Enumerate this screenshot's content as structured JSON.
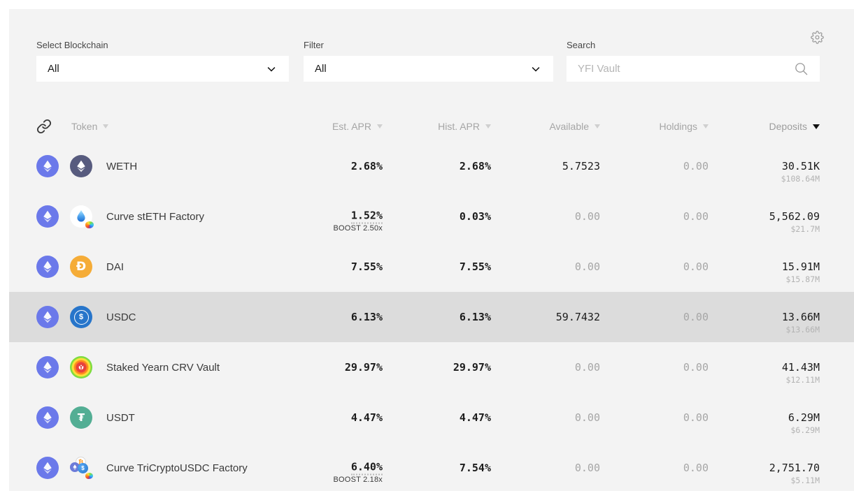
{
  "header": {
    "settings_icon": "gear-outline"
  },
  "filters": {
    "blockchain": {
      "label": "Select Blockchain",
      "value": "All"
    },
    "category": {
      "label": "Filter",
      "value": "All"
    },
    "search": {
      "label": "Search",
      "placeholder": "YFI Vault",
      "icon": "magnifier"
    }
  },
  "table": {
    "columns": [
      {
        "label": "Token",
        "sortable": true,
        "sort": "none"
      },
      {
        "label": "Est. APR",
        "sortable": true,
        "sort": "none"
      },
      {
        "label": "Hist. APR",
        "sortable": true,
        "sort": "none"
      },
      {
        "label": "Available",
        "sortable": true,
        "sort": "none"
      },
      {
        "label": "Holdings",
        "sortable": true,
        "sort": "none"
      },
      {
        "label": "Deposits",
        "sortable": true,
        "sort": "desc"
      }
    ],
    "rows": [
      {
        "chain": "ethereum",
        "icon": "weth",
        "token": "WETH",
        "est_apr": "2.68%",
        "boost": null,
        "hist_apr": "2.68%",
        "available": "5.7523",
        "holdings": "0.00",
        "deposits": "30.51K",
        "deposits_usd": "$108.64M",
        "highlighted": false
      },
      {
        "chain": "ethereum",
        "icon": "steth",
        "token": "Curve stETH Factory",
        "est_apr": "1.52%",
        "boost": "BOOST 2.50x",
        "hist_apr": "0.03%",
        "available": "0.00",
        "holdings": "0.00",
        "deposits": "5,562.09",
        "deposits_usd": "$21.7M",
        "highlighted": false
      },
      {
        "chain": "ethereum",
        "icon": "dai",
        "token": "DAI",
        "est_apr": "7.55%",
        "boost": null,
        "hist_apr": "7.55%",
        "available": "0.00",
        "holdings": "0.00",
        "deposits": "15.91M",
        "deposits_usd": "$15.87M",
        "highlighted": false
      },
      {
        "chain": "ethereum",
        "icon": "usdc",
        "token": "USDC",
        "est_apr": "6.13%",
        "boost": null,
        "hist_apr": "6.13%",
        "available": "59.7432",
        "holdings": "0.00",
        "deposits": "13.66M",
        "deposits_usd": "$13.66M",
        "highlighted": true
      },
      {
        "chain": "ethereum",
        "icon": "stycrv",
        "token": "Staked Yearn CRV Vault",
        "est_apr": "29.97%",
        "boost": null,
        "hist_apr": "29.97%",
        "available": "0.00",
        "holdings": "0.00",
        "deposits": "41.43M",
        "deposits_usd": "$12.11M",
        "highlighted": false
      },
      {
        "chain": "ethereum",
        "icon": "usdt",
        "token": "USDT",
        "est_apr": "4.47%",
        "boost": null,
        "hist_apr": "4.47%",
        "available": "0.00",
        "holdings": "0.00",
        "deposits": "6.29M",
        "deposits_usd": "$6.29M",
        "highlighted": false
      },
      {
        "chain": "ethereum",
        "icon": "tricrypto",
        "token": "Curve TriCryptoUSDC Factory",
        "est_apr": "6.40%",
        "boost": "BOOST 2.18x",
        "hist_apr": "7.54%",
        "available": "0.00",
        "holdings": "0.00",
        "deposits": "2,751.70",
        "deposits_usd": "$5.11M",
        "highlighted": false
      }
    ]
  },
  "colors": {
    "panel_bg": "#f3f3f3",
    "row_highlight": "#dcdcdc",
    "ethereum_badge": "#6b79ea",
    "weth_coin": "#575b7e",
    "dai_coin": "#f5ac37",
    "usdc_coin": "#2775ca",
    "usdt_coin": "#53ae94",
    "value_text": "#1c1c1c",
    "muted_text": "#a6a6a6",
    "header_text": "#a5a5a5"
  }
}
